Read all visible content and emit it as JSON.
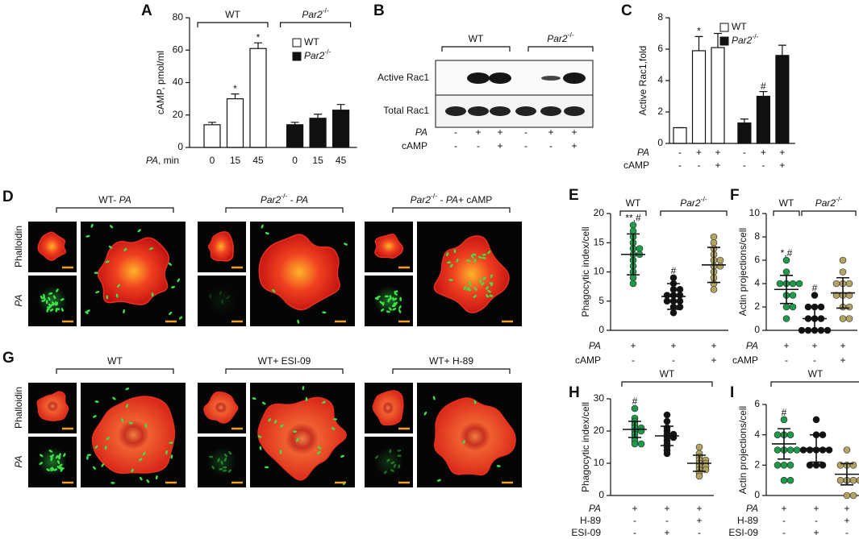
{
  "chart_data": [
    {
      "type": "bar",
      "letter": "A",
      "ylabel": "cAMP, pmol/ml",
      "ylim": [
        0,
        80
      ],
      "yticks": [
        0,
        20,
        40,
        60,
        80
      ],
      "xlabel": [
        {
          "text": "PA",
          "italic": true
        },
        {
          "text": ", min"
        }
      ],
      "categories": [
        0,
        15,
        45
      ],
      "legend": true,
      "brackets": true,
      "series": [
        {
          "name": "WT",
          "color": "#ffffff",
          "values": [
            14,
            30,
            61
          ],
          "errors": [
            1.5,
            3,
            3.5
          ],
          "annotations": [
            null,
            "*",
            "*"
          ]
        },
        {
          "name": [
            {
              "text": "Par2",
              "italic": true
            },
            {
              "text": "-/-",
              "sup": true
            }
          ],
          "color": "#111111",
          "values": [
            14,
            18,
            23
          ],
          "errors": [
            1.5,
            2.5,
            3.5
          ],
          "annotations": [
            null,
            null,
            null
          ]
        }
      ]
    },
    {
      "type": "bar",
      "letter": "C",
      "ylabel": "Active Rac1,fold",
      "ylim": [
        0,
        8
      ],
      "yticks": [
        0,
        2,
        4,
        6,
        8
      ],
      "legend": true,
      "brackets": false,
      "series": [
        {
          "name": "WT",
          "color": "#ffffff",
          "values": [
            1,
            5.9,
            6.1
          ],
          "errors": [
            0,
            0.9,
            0.9
          ],
          "annotations": [
            null,
            "*",
            null
          ]
        },
        {
          "name": [
            {
              "text": "Par2",
              "italic": true
            },
            {
              "text": "-/-",
              "sup": true
            }
          ],
          "color": "#111111",
          "values": [
            1.3,
            3.0,
            5.6
          ],
          "errors": [
            0.25,
            0.3,
            0.65
          ],
          "annotations": [
            null,
            "#",
            null
          ]
        }
      ],
      "conditions": [
        {
          "label": [
            {
              "text": "PA",
              "italic": true
            }
          ],
          "values": [
            "-",
            "+",
            "+",
            "-",
            "+",
            "+"
          ]
        },
        {
          "label": "cAMP",
          "values": [
            "-",
            "-",
            "+",
            "-",
            "-",
            "+"
          ]
        }
      ]
    },
    {
      "type": "dot",
      "letter": "E",
      "ylabel": "Phagocytic index/cell",
      "ylim": [
        0,
        20
      ],
      "yticks": [
        0,
        5,
        10,
        15,
        20
      ],
      "series": [
        {
          "name": "WT",
          "groups": [
            {
              "color": "#1f9a4a",
              "values": [
                18,
                17,
                16,
                15,
                14,
                14,
                13,
                13,
                12,
                11,
                10,
                9,
                8
              ],
              "mean": 13,
              "sd": 3.5,
              "annotation": "**,#"
            }
          ]
        },
        {
          "name": [
            {
              "text": "Par2",
              "italic": true
            },
            {
              "text": "-/-",
              "sup": true
            }
          ],
          "groups": [
            {
              "color": "#111111",
              "values": [
                9,
                8,
                7,
                7,
                6,
                6,
                6,
                5,
                5,
                5,
                4,
                4,
                3
              ],
              "mean": 5.8,
              "sd": 2.2,
              "annotation": "#"
            },
            {
              "color": "#b3a466",
              "values": [
                16,
                15,
                14,
                13,
                12,
                12,
                11,
                11,
                10,
                9,
                8,
                7
              ],
              "mean": 11.2,
              "sd": 3
            }
          ]
        }
      ],
      "conditions": [
        {
          "label": [
            {
              "text": "PA",
              "italic": true
            }
          ],
          "values": [
            "+",
            "+",
            "+"
          ]
        },
        {
          "label": "cAMP",
          "values": [
            "-",
            "-",
            "+"
          ]
        }
      ]
    },
    {
      "type": "dot",
      "letter": "F",
      "ylabel": "Actin projections/cell",
      "ylim": [
        0,
        10
      ],
      "yticks": [
        0,
        2,
        4,
        6,
        8,
        10
      ],
      "series": [
        {
          "name": "WT",
          "groups": [
            {
              "color": "#1f9a4a",
              "values": [
                6,
                5,
                4,
                4,
                4,
                4,
                3,
                3,
                2,
                2,
                1
              ],
              "mean": 3.5,
              "sd": 1.2,
              "annotation": "*,#"
            }
          ]
        },
        {
          "name": [
            {
              "text": "Par2",
              "italic": true
            },
            {
              "text": "-/-",
              "sup": true
            }
          ],
          "groups": [
            {
              "color": "#111111",
              "values": [
                3,
                2,
                2,
                2,
                1,
                1,
                1,
                0,
                0,
                0,
                0,
                0
              ],
              "mean": 1,
              "sd": 1,
              "annotation": "#"
            },
            {
              "color": "#b3a466",
              "values": [
                6,
                5,
                4,
                4,
                4,
                3,
                3,
                3,
                2,
                2,
                1,
                1
              ],
              "mean": 3.2,
              "sd": 1.3
            }
          ]
        }
      ],
      "conditions": [
        {
          "label": [
            {
              "text": "PA",
              "italic": true
            }
          ],
          "values": [
            "+",
            "+",
            "+"
          ]
        },
        {
          "label": "cAMP",
          "values": [
            "-",
            "-",
            "+"
          ]
        }
      ]
    },
    {
      "type": "dot",
      "letter": "H",
      "ylabel": "Phagocytic index/cell",
      "ylim": [
        0,
        30
      ],
      "yticks": [
        0,
        10,
        20,
        30
      ],
      "series": [
        {
          "name": "WT",
          "groups": [
            {
              "color": "#1f9a4a",
              "values": [
                27,
                24,
                23,
                22,
                21,
                21,
                20,
                20,
                19,
                18,
                17,
                16,
                16
              ],
              "mean": 20.5,
              "sd": 2.5,
              "annotation": "#"
            },
            {
              "color": "#111111",
              "values": [
                25,
                23,
                21,
                20,
                19,
                19,
                18,
                18,
                17,
                16,
                15,
                14,
                13
              ],
              "mean": 18.5,
              "sd": 3
            },
            {
              "color": "#b3a466",
              "values": [
                15,
                13,
                12,
                11,
                11,
                10,
                10,
                9,
                9,
                8,
                8,
                7,
                6
              ],
              "mean": 10,
              "sd": 2.5
            }
          ]
        }
      ],
      "conditions": [
        {
          "label": [
            {
              "text": "PA",
              "italic": true
            }
          ],
          "values": [
            "+",
            "+",
            "+"
          ]
        },
        {
          "label": "H-89",
          "values": [
            "-",
            "-",
            "+"
          ]
        },
        {
          "label": "ESI-09",
          "values": [
            "-",
            "+",
            "-"
          ]
        }
      ]
    },
    {
      "type": "dot",
      "letter": "I",
      "ylabel": "Actin projections/cell",
      "ylim": [
        0,
        6
      ],
      "yticks": [
        0,
        2,
        4,
        6
      ],
      "series": [
        {
          "name": "WT",
          "groups": [
            {
              "color": "#1f9a4a",
              "values": [
                5,
                4,
                4,
                4,
                3,
                3,
                3,
                3,
                2,
                2,
                2,
                1,
                1
              ],
              "mean": 3.4,
              "sd": 1,
              "annotation": "#"
            },
            {
              "color": "#111111",
              "values": [
                5,
                4,
                4,
                3,
                3,
                3,
                3,
                3,
                2,
                2,
                2
              ],
              "mean": 3.1,
              "sd": 0.9
            },
            {
              "color": "#b3a466",
              "values": [
                3,
                2,
                2,
                2,
                1,
                1,
                1,
                1,
                0,
                0
              ],
              "mean": 1.4,
              "sd": 0.7
            }
          ]
        }
      ],
      "conditions": [
        {
          "label": [
            {
              "text": "PA",
              "italic": true
            }
          ],
          "values": [
            "+",
            "+",
            "+"
          ]
        },
        {
          "label": "H-89",
          "values": [
            "-",
            "-",
            "+"
          ]
        },
        {
          "label": "ESI-09",
          "values": [
            "-",
            "+",
            "-"
          ]
        }
      ]
    }
  ],
  "blot": {
    "letter": "B",
    "rows": [
      "Active Rac1",
      "Total Rac1"
    ],
    "genotypes": [
      "WT",
      [
        {
          "text": "Par2",
          "italic": true
        },
        {
          "text": "-/-",
          "sup": true
        }
      ]
    ],
    "conditions": [
      {
        "label": [
          {
            "text": "PA",
            "italic": true
          }
        ],
        "values": [
          "-",
          "+",
          "+",
          "-",
          "+",
          "+"
        ]
      },
      {
        "label": "cAMP",
        "values": [
          "-",
          "-",
          "+",
          "-",
          "-",
          "+"
        ]
      }
    ]
  },
  "micrographs": [
    {
      "letter": "D",
      "channels": [
        "Phalloidin",
        [
          {
            "text": "PA",
            "italic": true
          }
        ]
      ],
      "panels": [
        [
          {
            "text": "WT- "
          },
          {
            "text": "PA",
            "italic": true
          }
        ],
        [
          {
            "text": "Par2",
            "italic": true
          },
          {
            "text": "-/-",
            "sup": true
          },
          {
            "text": " - "
          },
          {
            "text": "PA",
            "italic": true
          }
        ],
        [
          {
            "text": "Par2",
            "italic": true
          },
          {
            "text": "-/-",
            "sup": true
          },
          {
            "text": " - "
          },
          {
            "text": "PA",
            "italic": true
          },
          {
            "text": "+ cAMP"
          }
        ]
      ]
    },
    {
      "letter": "G",
      "channels": [
        "Phalloidin",
        [
          {
            "text": "PA",
            "italic": true
          }
        ]
      ],
      "panels": [
        "WT",
        "WT+ ESI-09",
        "WT+ H-89"
      ]
    }
  ]
}
